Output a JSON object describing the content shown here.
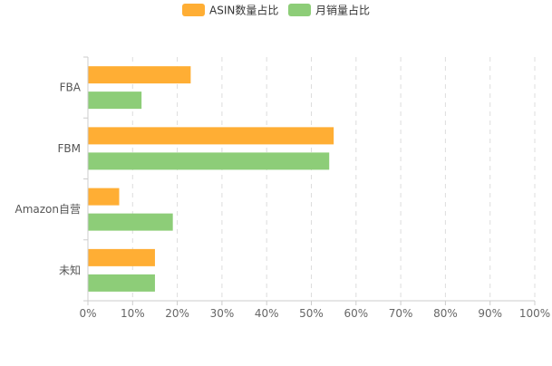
{
  "chart_data": {
    "type": "bar",
    "orientation": "horizontal",
    "categories": [
      "FBA",
      "FBM",
      "Amazon自营",
      "未知"
    ],
    "series": [
      {
        "name": "ASIN数量占比",
        "color": "#FFAE34",
        "values": [
          23,
          55,
          7,
          15
        ]
      },
      {
        "name": "月销量占比",
        "color": "#8DCD78",
        "values": [
          12,
          54,
          19,
          15
        ]
      }
    ],
    "xlim": [
      0,
      100
    ],
    "x_ticks": [
      "0%",
      "10%",
      "20%",
      "30%",
      "40%",
      "50%",
      "60%",
      "70%",
      "80%",
      "90%",
      "100%"
    ],
    "grid": "vertical-dashed",
    "legend_position": "top-center",
    "title": "",
    "xlabel": "",
    "ylabel": ""
  }
}
